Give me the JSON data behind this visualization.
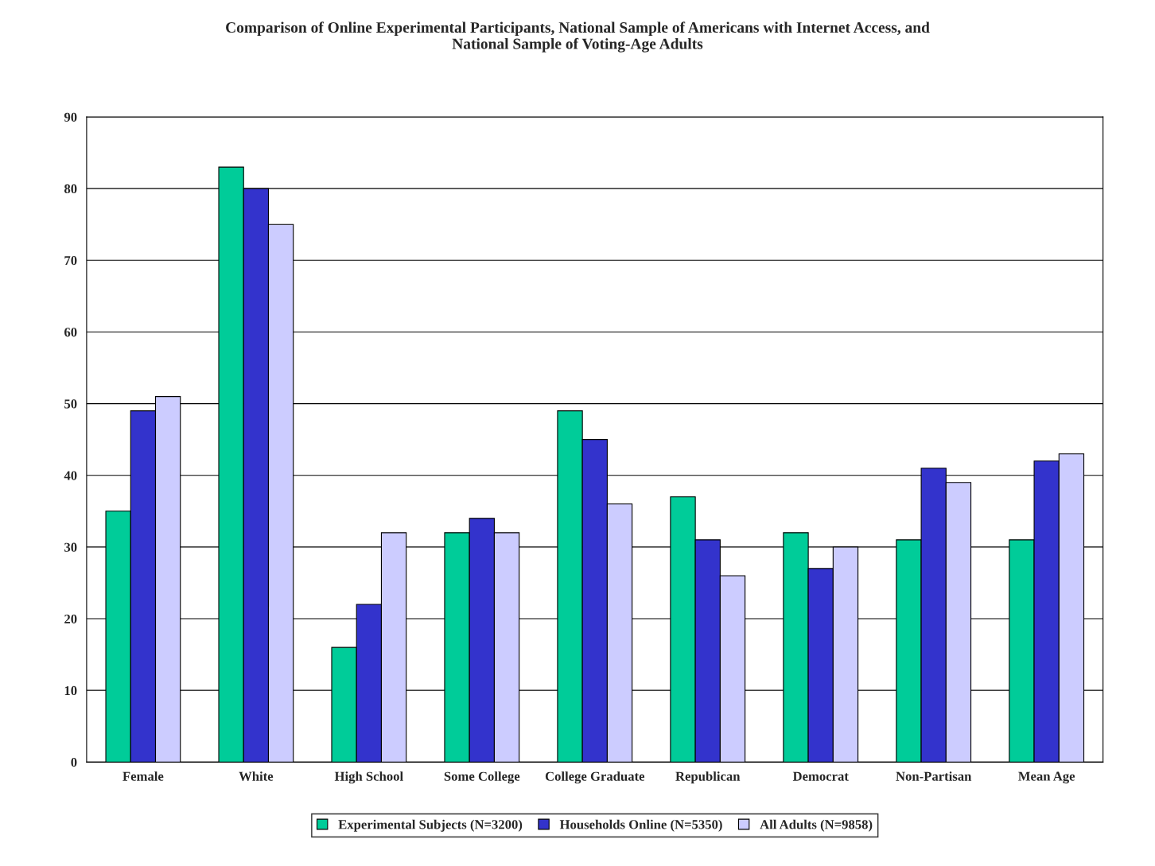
{
  "chart_data": {
    "type": "bar",
    "title": "Comparison of Online Experimental Participants, National Sample of Americans with Internet Access, and\nNational Sample of Voting-Age Adults",
    "categories": [
      "Female",
      "White",
      "High School",
      "Some College",
      "College Graduate",
      "Republican",
      "Democrat",
      "Non-Partisan",
      "Mean Age"
    ],
    "series": [
      {
        "name": "Experimental Subjects (N=3200)",
        "color": "#00cc99",
        "values": [
          35,
          83,
          16,
          32,
          49,
          37,
          32,
          31,
          31
        ]
      },
      {
        "name": "Households Online (N=5350)",
        "color": "#3333cc",
        "values": [
          49,
          80,
          22,
          34,
          45,
          31,
          27,
          41,
          42
        ]
      },
      {
        "name": "All Adults (N=9858)",
        "color": "#ccccff",
        "values": [
          51,
          75,
          32,
          32,
          36,
          26,
          30,
          39,
          43
        ]
      }
    ],
    "ylim": [
      0,
      90
    ],
    "yticks": [
      0,
      10,
      20,
      30,
      40,
      50,
      60,
      70,
      80,
      90
    ],
    "grid": "y",
    "legend": "bottom"
  }
}
